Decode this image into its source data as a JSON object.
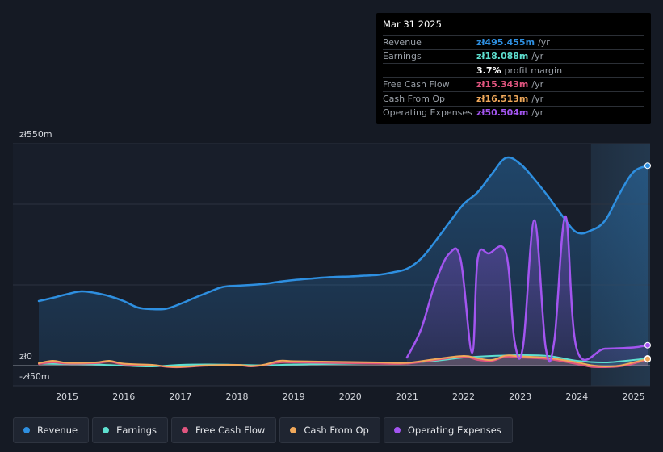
{
  "tooltip": {
    "date": "Mar 31 2025",
    "rows": [
      {
        "label": "Revenue",
        "value": "zł495.455m",
        "unit": "/yr",
        "color": "#2e8fe0"
      },
      {
        "label": "Earnings",
        "value": "zł18.088m",
        "unit": "/yr",
        "color": "#5ee0d0"
      },
      {
        "label": "",
        "value": "3.7%",
        "unit": "profit margin",
        "color": "#ffffff"
      },
      {
        "label": "Free Cash Flow",
        "value": "zł15.343m",
        "unit": "/yr",
        "color": "#e0557f"
      },
      {
        "label": "Cash From Op",
        "value": "zł16.513m",
        "unit": "/yr",
        "color": "#f0a85a"
      },
      {
        "label": "Operating Expenses",
        "value": "zł50.504m",
        "unit": "/yr",
        "color": "#a355f0"
      }
    ]
  },
  "legend": [
    {
      "label": "Revenue",
      "color": "#2e8fe0"
    },
    {
      "label": "Earnings",
      "color": "#5ee0d0"
    },
    {
      "label": "Free Cash Flow",
      "color": "#e0557f"
    },
    {
      "label": "Cash From Op",
      "color": "#f0a85a"
    },
    {
      "label": "Operating Expenses",
      "color": "#a355f0"
    }
  ],
  "chart_data": {
    "type": "area",
    "y_tick_labels": [
      "zł550m",
      "zł0",
      "-zł50m"
    ],
    "ylim": [
      -50,
      550
    ],
    "xlim": [
      2014.5,
      2025.25
    ],
    "x_ticks": [
      2015,
      2016,
      2017,
      2018,
      2019,
      2020,
      2021,
      2022,
      2023,
      2024,
      2025
    ],
    "x_tick_labels": [
      "2015",
      "2016",
      "2017",
      "2018",
      "2019",
      "2020",
      "2021",
      "2022",
      "2023",
      "2024",
      "2025"
    ],
    "highlight_from": 2024.25,
    "grid": true,
    "legend_position": "bottom",
    "series": [
      {
        "name": "Revenue",
        "color": "#2e8fe0",
        "x": [
          2014.5,
          2014.75,
          2015.0,
          2015.25,
          2015.5,
          2015.75,
          2016.0,
          2016.25,
          2016.5,
          2016.75,
          2017.0,
          2017.25,
          2017.5,
          2017.75,
          2018.0,
          2018.25,
          2018.5,
          2018.75,
          2019.0,
          2019.25,
          2019.5,
          2019.75,
          2020.0,
          2020.25,
          2020.5,
          2020.75,
          2021.0,
          2021.25,
          2021.5,
          2021.75,
          2022.0,
          2022.25,
          2022.5,
          2022.75,
          2023.0,
          2023.25,
          2023.5,
          2023.75,
          2024.0,
          2024.25,
          2024.5,
          2024.75,
          2025.0,
          2025.25
        ],
        "values": [
          160,
          168,
          177,
          184,
          180,
          172,
          160,
          144,
          140,
          141,
          153,
          168,
          182,
          195,
          198,
          200,
          203,
          208,
          212,
          215,
          218,
          220,
          221,
          223,
          225,
          231,
          240,
          265,
          308,
          355,
          400,
          430,
          475,
          515,
          500,
          462,
          418,
          370,
          330,
          335,
          360,
          425,
          480,
          495.455
        ]
      },
      {
        "name": "Earnings",
        "color": "#5ee0d0",
        "x": [
          2014.5,
          2015.0,
          2015.5,
          2016.0,
          2016.5,
          2017.0,
          2017.5,
          2018.0,
          2018.5,
          2019.0,
          2019.5,
          2020.0,
          2020.5,
          2021.0,
          2021.5,
          2022.0,
          2022.5,
          2023.0,
          2023.5,
          2024.0,
          2024.5,
          2025.0,
          2025.25
        ],
        "values": [
          5,
          4,
          3,
          0,
          -2,
          2,
          3,
          2,
          1,
          3,
          4,
          5,
          6,
          7,
          12,
          20,
          24,
          26,
          24,
          12,
          8,
          14,
          18.088
        ]
      },
      {
        "name": "Free Cash Flow",
        "color": "#e0557f",
        "x": [
          2014.5,
          2014.75,
          2015.0,
          2015.5,
          2015.75,
          2016.0,
          2016.5,
          2016.75,
          2017.0,
          2017.5,
          2018.0,
          2018.25,
          2018.5,
          2018.75,
          2019.0,
          2019.5,
          2020.0,
          2020.5,
          2021.0,
          2021.5,
          2022.0,
          2022.25,
          2022.5,
          2022.75,
          2023.0,
          2023.5,
          2024.0,
          2024.25,
          2024.5,
          2024.75,
          2025.0,
          2025.25
        ],
        "values": [
          4,
          8,
          5,
          6,
          10,
          3,
          1,
          -3,
          -4,
          0,
          1,
          -2,
          2,
          8,
          8,
          7,
          6,
          5,
          5,
          14,
          22,
          14,
          12,
          22,
          20,
          16,
          4,
          -3,
          -4,
          -2,
          5,
          15.343
        ]
      },
      {
        "name": "Cash From Op",
        "color": "#f0a85a",
        "x": [
          2014.5,
          2014.75,
          2015.0,
          2015.5,
          2015.75,
          2016.0,
          2016.5,
          2016.75,
          2017.0,
          2017.5,
          2018.0,
          2018.25,
          2018.5,
          2018.75,
          2019.0,
          2019.5,
          2020.0,
          2020.5,
          2021.0,
          2021.5,
          2022.0,
          2022.25,
          2022.5,
          2022.75,
          2023.0,
          2023.5,
          2024.0,
          2024.25,
          2024.5,
          2024.75,
          2025.0,
          2025.25
        ],
        "values": [
          6,
          12,
          7,
          8,
          12,
          5,
          2,
          -2,
          -3,
          1,
          2,
          -1,
          3,
          12,
          11,
          10,
          9,
          8,
          7,
          16,
          24,
          18,
          14,
          25,
          23,
          19,
          8,
          1,
          -2,
          0,
          8,
          16.513
        ]
      },
      {
        "name": "Operating Expenses",
        "color": "#a355f0",
        "x": [
          2021.0,
          2021.25,
          2021.5,
          2021.75,
          2021.95,
          2022.15,
          2022.25,
          2022.45,
          2022.75,
          2022.9,
          2023.05,
          2023.25,
          2023.45,
          2023.6,
          2023.8,
          2024.0,
          2024.5,
          2025.0,
          2025.25
        ],
        "values": [
          20,
          90,
          205,
          278,
          262,
          32,
          265,
          278,
          278,
          60,
          48,
          360,
          45,
          60,
          370,
          40,
          42,
          45,
          50.504
        ]
      }
    ]
  }
}
